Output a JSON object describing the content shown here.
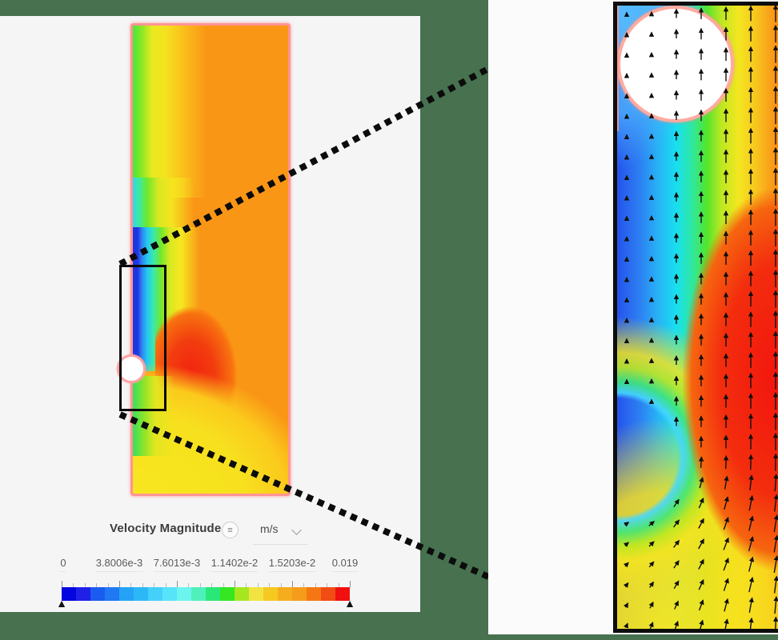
{
  "scene": {
    "description": "CFD velocity magnitude contour plot with magnified inset showing velocity vectors",
    "background_color": "#47714f",
    "panel_color": "#f5f5f6"
  },
  "legend": {
    "field_label": "Velocity Magnitude",
    "menu_icon": "≡",
    "unit": {
      "value": "m/s"
    }
  },
  "colorbar": {
    "tick_labels": [
      "0",
      "3.8006e-3",
      "7.6013e-3",
      "1.1402e-2",
      "1.5203e-2",
      "0.019"
    ],
    "range": {
      "min": 0,
      "max": 0.019
    },
    "units": "m/s",
    "marker_icon": "▲",
    "intervals": 5,
    "minor_ticks_per_interval": 4,
    "segment_colors": [
      "#0505e0",
      "#2020e8",
      "#1b5cf0",
      "#2079f2",
      "#24a3f5",
      "#2cb8f6",
      "#44d0f8",
      "#57e3f9",
      "#6cf5ef",
      "#4ff0bb",
      "#2ae878",
      "#35e621",
      "#a5e620",
      "#f2e342",
      "#f5c822",
      "#f5ad1e",
      "#f59c1a",
      "#f57714",
      "#f24c16",
      "#f01010"
    ]
  },
  "views": {
    "main": {
      "domain_border_color": "#ff9494",
      "zoom_box_color": "#0b0b0b"
    },
    "inset": {
      "frame_color": "#0d0d0d",
      "vector_color": "#101010"
    }
  }
}
